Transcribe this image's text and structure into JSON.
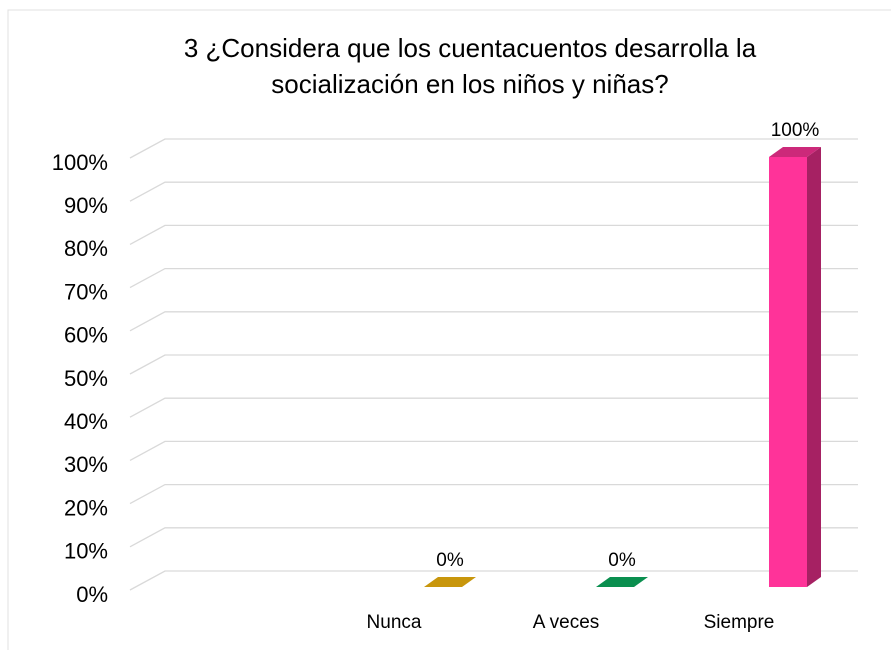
{
  "chart_data": {
    "type": "bar3d",
    "title": [
      "3  ¿Considera que los cuentacuentos desarrolla la",
      "socialización en los niños y niñas?"
    ],
    "categories": [
      "Nunca",
      "A veces",
      "Siempre"
    ],
    "values": [
      0,
      0,
      100
    ],
    "value_labels": [
      "0%",
      "0%",
      "100%"
    ],
    "colors": [
      "#c8960c",
      "#0a8f4f",
      "#ff3399"
    ],
    "ylim": [
      0,
      100
    ],
    "yticks": [
      {
        "value": 0,
        "label": "0%"
      },
      {
        "value": 10,
        "label": "10%"
      },
      {
        "value": 20,
        "label": "20%"
      },
      {
        "value": 30,
        "label": "30%"
      },
      {
        "value": 40,
        "label": "40%"
      },
      {
        "value": 50,
        "label": "50%"
      },
      {
        "value": 60,
        "label": "60%"
      },
      {
        "value": 70,
        "label": "70%"
      },
      {
        "value": 80,
        "label": "80%"
      },
      {
        "value": 90,
        "label": "90%"
      },
      {
        "value": 100,
        "label": "100%"
      }
    ],
    "grid": true
  }
}
